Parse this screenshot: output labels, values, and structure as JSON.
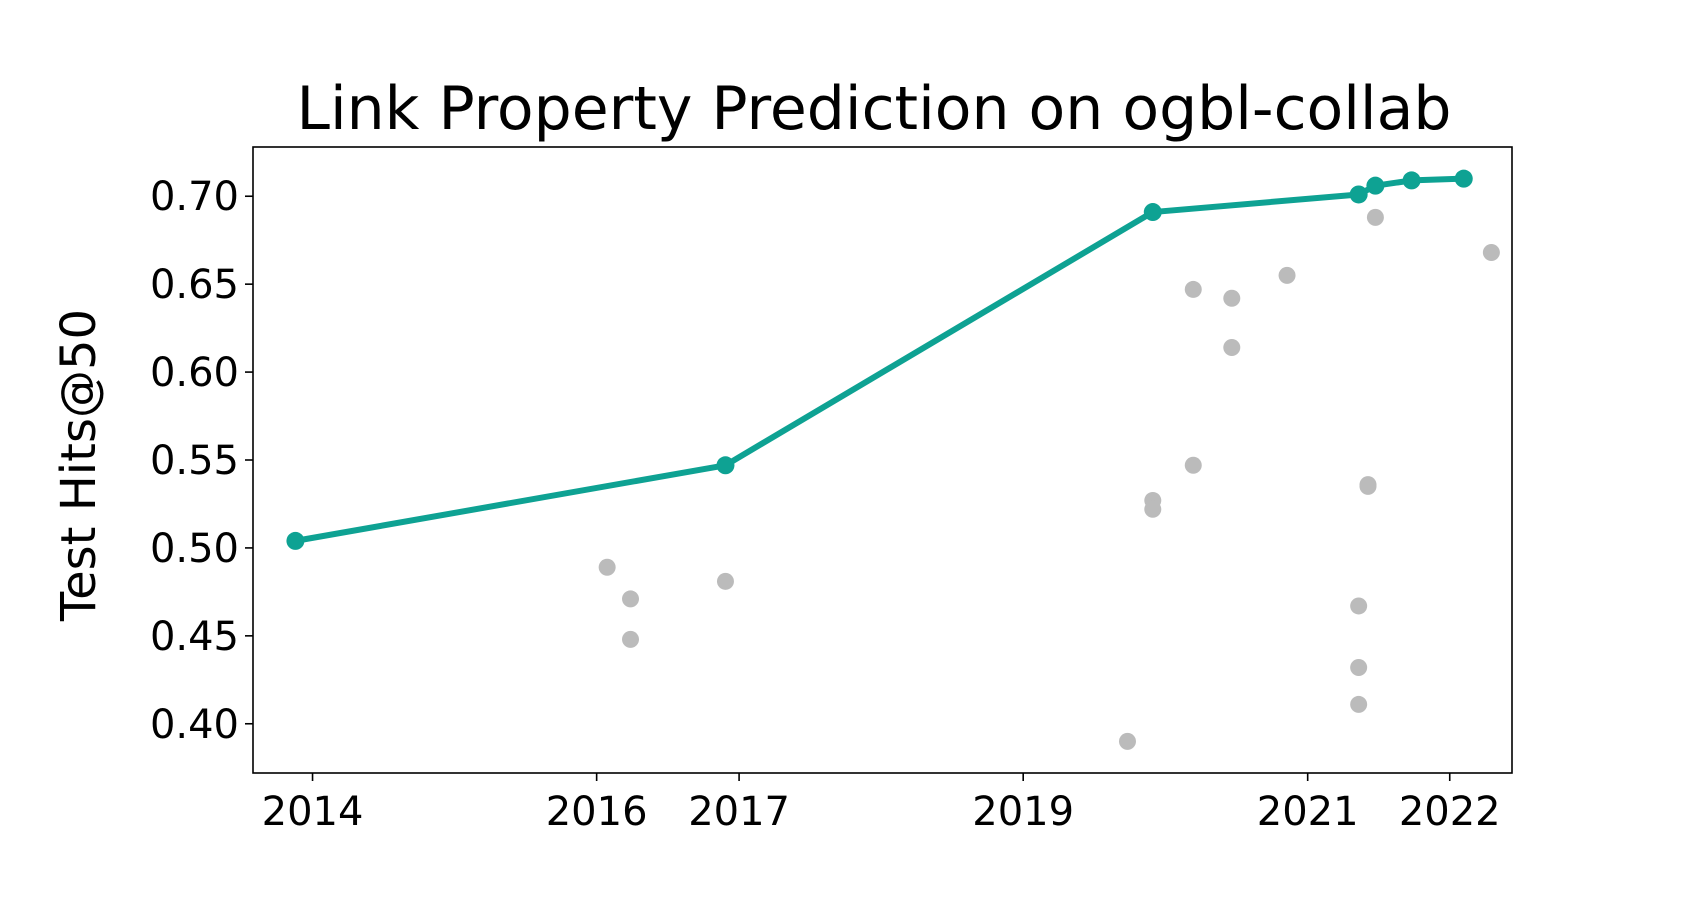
{
  "chart_data": {
    "type": "scatter",
    "title": "Link Property Prediction on ogbl-collab",
    "xlabel": "",
    "ylabel": "Test Hits@50",
    "x_ticks": [
      {
        "label": "2014",
        "date": "2014-01-01"
      },
      {
        "label": "2016",
        "date": "2016-01-01"
      },
      {
        "label": "2017",
        "date": "2017-01-01"
      },
      {
        "label": "2019",
        "date": "2019-01-01"
      },
      {
        "label": "2021",
        "date": "2021-01-01"
      },
      {
        "label": "2022",
        "date": "2022-01-01"
      }
    ],
    "y_ticks": [
      "0.40",
      "0.45",
      "0.50",
      "0.55",
      "0.60",
      "0.65",
      "0.70"
    ],
    "xlim": [
      "2013-08-01",
      "2022-06-10"
    ],
    "ylim": [
      0.372,
      0.728
    ],
    "grid": false,
    "series": [
      {
        "kind": "line",
        "color": "#0ea293",
        "points": [
          {
            "x": "2013-11-18",
            "y": 0.504
          },
          {
            "x": "2016-11-27",
            "y": 0.547
          },
          {
            "x": "2019-11-30",
            "y": 0.691
          },
          {
            "x": "2021-05-12",
            "y": 0.701
          },
          {
            "x": "2021-06-24",
            "y": 0.706
          },
          {
            "x": "2021-09-25",
            "y": 0.709
          },
          {
            "x": "2022-02-06",
            "y": 0.71
          }
        ]
      },
      {
        "kind": "scatter",
        "color": "#bbbbbb",
        "points": [
          {
            "x": "2016-01-28",
            "y": 0.489
          },
          {
            "x": "2016-03-28",
            "y": 0.471
          },
          {
            "x": "2016-03-28",
            "y": 0.448
          },
          {
            "x": "2016-11-27",
            "y": 0.481
          },
          {
            "x": "2019-09-26",
            "y": 0.39
          },
          {
            "x": "2019-11-30",
            "y": 0.527
          },
          {
            "x": "2019-11-30",
            "y": 0.522
          },
          {
            "x": "2020-03-13",
            "y": 0.647
          },
          {
            "x": "2020-03-13",
            "y": 0.547
          },
          {
            "x": "2020-06-20",
            "y": 0.642
          },
          {
            "x": "2020-06-20",
            "y": 0.614
          },
          {
            "x": "2020-11-09",
            "y": 0.655
          },
          {
            "x": "2021-05-12",
            "y": 0.467
          },
          {
            "x": "2021-05-12",
            "y": 0.432
          },
          {
            "x": "2021-05-12",
            "y": 0.411
          },
          {
            "x": "2021-06-05",
            "y": 0.536
          },
          {
            "x": "2021-06-05",
            "y": 0.535
          },
          {
            "x": "2021-06-24",
            "y": 0.688
          },
          {
            "x": "2022-04-18",
            "y": 0.668
          }
        ]
      }
    ]
  }
}
